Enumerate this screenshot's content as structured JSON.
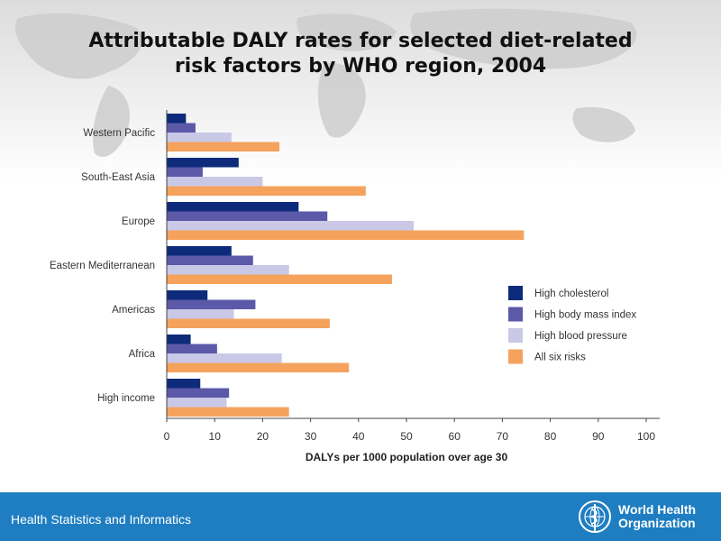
{
  "title_line1": "Attributable DALY rates for selected diet-related",
  "title_line2": "risk factors by WHO region, 2004",
  "footer_text": "Health Statistics and Informatics",
  "organization": {
    "line1": "World Health",
    "line2": "Organization"
  },
  "chart_data": {
    "type": "bar",
    "orientation": "horizontal",
    "categories": [
      "Western Pacific",
      "South-East Asia",
      "Europe",
      "Eastern Mediterranean",
      "Americas",
      "Africa",
      "High income"
    ],
    "series": [
      {
        "name": "High cholesterol",
        "color": "#0d2b7a",
        "values": [
          4,
          15,
          27.5,
          13.5,
          8.5,
          5,
          7
        ]
      },
      {
        "name": "High body mass index",
        "color": "#5b59a8",
        "values": [
          6,
          7.5,
          33.5,
          18,
          18.5,
          10.5,
          13
        ]
      },
      {
        "name": "High blood pressure",
        "color": "#c9c8e6",
        "values": [
          13.5,
          20,
          51.5,
          25.5,
          14,
          24,
          12.5
        ]
      },
      {
        "name": "All six risks",
        "color": "#f5a25d",
        "values": [
          23.5,
          41.5,
          74.5,
          47,
          34,
          38,
          25.5
        ]
      }
    ],
    "xlabel": "DALYs per 1000 population over age 30",
    "ylabel": "",
    "xlim": [
      0,
      100
    ],
    "xticks": [
      0,
      10,
      20,
      30,
      40,
      50,
      60,
      70,
      80,
      90,
      100
    ],
    "legend_position": "right",
    "grid": false
  }
}
